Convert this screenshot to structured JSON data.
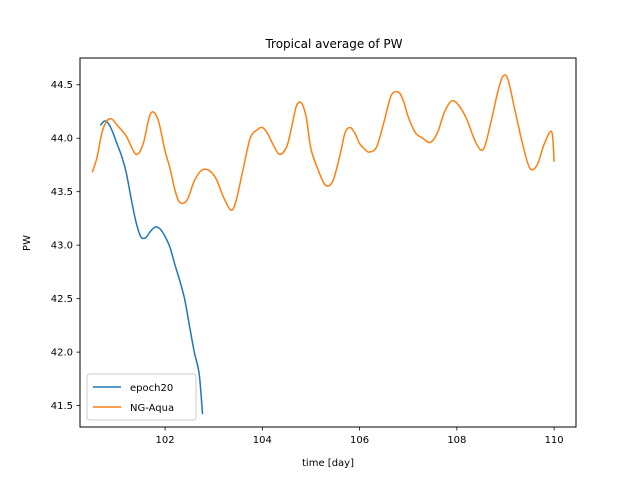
{
  "chart_data": {
    "type": "line",
    "title": "Tropical average of PW",
    "xlabel": "time [day]",
    "ylabel": "PW",
    "xlim": [
      100.25,
      110.45
    ],
    "ylim": [
      41.3,
      44.75
    ],
    "xticks": [
      "102",
      "104",
      "106",
      "108",
      "110"
    ],
    "yticks": [
      "41.5",
      "42.0",
      "42.5",
      "43.0",
      "43.5",
      "44.0",
      "44.5"
    ],
    "grid": false,
    "legend_position": "lower-left",
    "series": [
      {
        "name": "epoch20",
        "color": "#1f77b4",
        "x": [
          100.67,
          100.75,
          100.83,
          100.92,
          101.0,
          101.1,
          101.2,
          101.3,
          101.4,
          101.5,
          101.6,
          101.7,
          101.8,
          101.9,
          102.0,
          102.1,
          102.2,
          102.3,
          102.4,
          102.5,
          102.6,
          102.7,
          102.77
        ],
        "y": [
          44.12,
          44.16,
          44.14,
          44.06,
          43.96,
          43.84,
          43.68,
          43.44,
          43.22,
          43.08,
          43.07,
          43.13,
          43.17,
          43.15,
          43.08,
          42.98,
          42.82,
          42.67,
          42.5,
          42.25,
          42.0,
          41.8,
          41.42
        ]
      },
      {
        "name": "NG-Aqua",
        "color": "#ff7f0e",
        "x": [
          100.5,
          100.6,
          100.7,
          100.8,
          100.9,
          101.0,
          101.2,
          101.4,
          101.55,
          101.7,
          101.85,
          102.0,
          102.1,
          102.2,
          102.3,
          102.45,
          102.6,
          102.75,
          102.9,
          103.05,
          103.2,
          103.35,
          103.45,
          103.6,
          103.75,
          103.9,
          104.0,
          104.1,
          104.2,
          104.35,
          104.5,
          104.6,
          104.7,
          104.8,
          104.9,
          105.0,
          105.15,
          105.3,
          105.45,
          105.6,
          105.7,
          105.8,
          105.9,
          106.0,
          106.1,
          106.2,
          106.35,
          106.5,
          106.65,
          106.8,
          106.9,
          107.0,
          107.15,
          107.3,
          107.45,
          107.6,
          107.75,
          107.9,
          108.05,
          108.2,
          108.4,
          108.55,
          108.7,
          108.85,
          108.95,
          109.05,
          109.2,
          109.35,
          109.5,
          109.65,
          109.8,
          109.95,
          110.0
        ],
        "y": [
          43.68,
          43.82,
          44.05,
          44.16,
          44.18,
          44.13,
          44.02,
          43.85,
          43.95,
          44.23,
          44.18,
          43.88,
          43.72,
          43.52,
          43.4,
          43.42,
          43.6,
          43.7,
          43.7,
          43.62,
          43.45,
          43.33,
          43.4,
          43.7,
          44.0,
          44.08,
          44.1,
          44.05,
          43.96,
          43.85,
          43.92,
          44.1,
          44.3,
          44.33,
          44.2,
          43.9,
          43.7,
          43.56,
          43.6,
          43.85,
          44.05,
          44.1,
          44.05,
          43.95,
          43.9,
          43.87,
          43.92,
          44.15,
          44.4,
          44.43,
          44.35,
          44.2,
          44.05,
          44.0,
          43.96,
          44.05,
          44.25,
          44.35,
          44.3,
          44.18,
          43.95,
          43.9,
          44.15,
          44.45,
          44.58,
          44.55,
          44.25,
          43.95,
          43.72,
          43.75,
          43.95,
          44.06,
          43.78
        ]
      }
    ]
  }
}
